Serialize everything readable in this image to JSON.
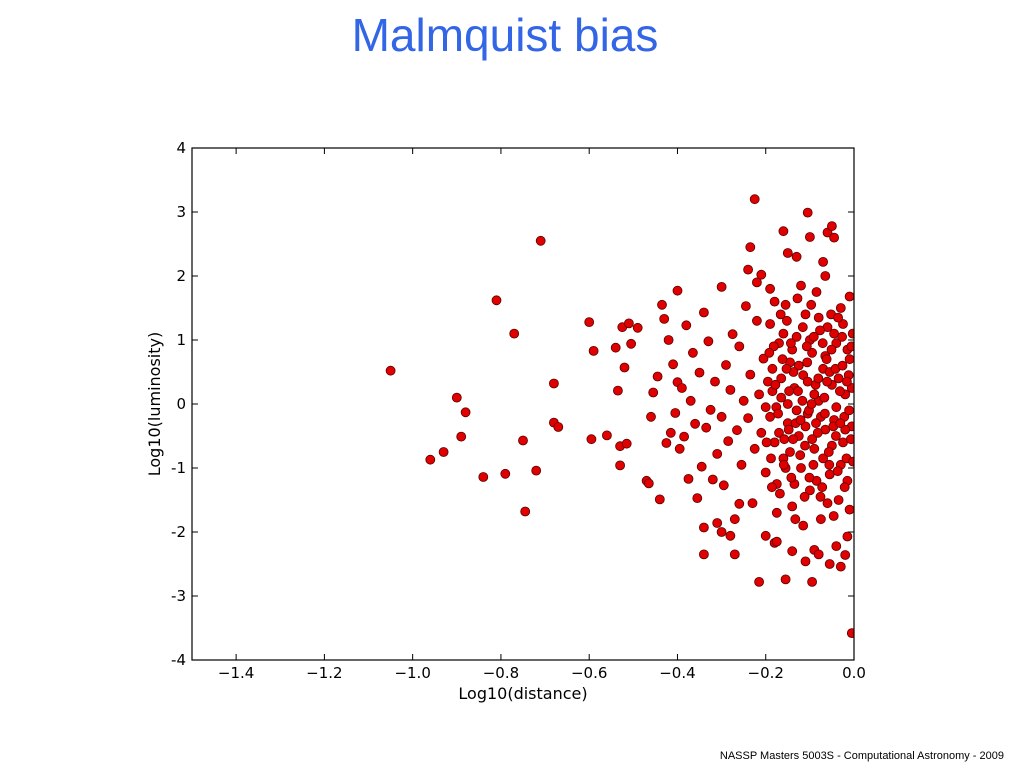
{
  "slide": {
    "title": "Malmquist bias",
    "footer": "NASSP Masters 5003S - Computational Astronomy - 2009"
  },
  "colors": {
    "title": "#3366e6",
    "point_fill": "#e00000",
    "point_edge": "#5a0000"
  },
  "chart_data": {
    "type": "scatter",
    "title": "",
    "xlabel": "Log10(distance)",
    "ylabel": "Log10(luminosity)",
    "xlim": [
      -1.5,
      0.0
    ],
    "ylim": [
      -4,
      4
    ],
    "xticks": [
      -1.4,
      -1.2,
      -1.0,
      -0.8,
      -0.6,
      -0.4,
      -0.2,
      0.0
    ],
    "xtick_labels": [
      "−1.4",
      "−1.2",
      "−1.0",
      "−0.8",
      "−0.6",
      "−0.4",
      "−0.2",
      "0.0"
    ],
    "yticks": [
      4,
      3,
      2,
      1,
      0,
      -1,
      -2,
      -3,
      -4
    ],
    "ytick_labels": [
      "4",
      "3",
      "2",
      "1",
      "0",
      "-1",
      "-2",
      "-3",
      "-4"
    ],
    "grid": false,
    "legend": "none",
    "series": [
      {
        "marker": "circle",
        "points": [
          [
            -1.05,
            0.52
          ],
          [
            -0.96,
            -0.87
          ],
          [
            -0.93,
            -0.75
          ],
          [
            -0.9,
            0.1
          ],
          [
            -0.89,
            -0.51
          ],
          [
            -0.88,
            -0.13
          ],
          [
            -0.84,
            -1.14
          ],
          [
            -0.81,
            1.62
          ],
          [
            -0.79,
            -1.09
          ],
          [
            -0.77,
            1.1
          ],
          [
            -0.75,
            -0.57
          ],
          [
            -0.745,
            -1.68
          ],
          [
            -0.72,
            -1.04
          ],
          [
            -0.71,
            2.55
          ],
          [
            -0.68,
            0.32
          ],
          [
            -0.68,
            -0.29
          ],
          [
            -0.67,
            -0.36
          ],
          [
            -0.6,
            1.28
          ],
          [
            -0.595,
            -0.55
          ],
          [
            -0.59,
            0.83
          ],
          [
            -0.56,
            -0.49
          ],
          [
            -0.54,
            0.88
          ],
          [
            -0.535,
            0.21
          ],
          [
            -0.53,
            -0.66
          ],
          [
            -0.53,
            -0.96
          ],
          [
            -0.525,
            1.2
          ],
          [
            -0.52,
            0.57
          ],
          [
            -0.515,
            -0.62
          ],
          [
            -0.51,
            1.26
          ],
          [
            -0.505,
            0.94
          ],
          [
            -0.49,
            1.19
          ],
          [
            -0.47,
            -1.2
          ],
          [
            -0.465,
            -1.24
          ],
          [
            -0.46,
            -0.2
          ],
          [
            -0.455,
            0.18
          ],
          [
            -0.445,
            0.43
          ],
          [
            -0.44,
            -1.49
          ],
          [
            -0.435,
            1.55
          ],
          [
            -0.43,
            1.33
          ],
          [
            -0.425,
            -0.61
          ],
          [
            -0.42,
            1.0
          ],
          [
            -0.415,
            -0.45
          ],
          [
            -0.41,
            0.62
          ],
          [
            -0.405,
            -0.14
          ],
          [
            -0.4,
            1.77
          ],
          [
            -0.4,
            0.34
          ],
          [
            -0.395,
            -0.7
          ],
          [
            -0.39,
            0.25
          ],
          [
            -0.385,
            -0.51
          ],
          [
            -0.38,
            1.23
          ],
          [
            -0.375,
            -1.17
          ],
          [
            -0.37,
            0.05
          ],
          [
            -0.365,
            0.8
          ],
          [
            -0.36,
            -0.31
          ],
          [
            -0.355,
            -1.47
          ],
          [
            -0.35,
            0.49
          ],
          [
            -0.345,
            -0.98
          ],
          [
            -0.34,
            1.43
          ],
          [
            -0.335,
            -0.37
          ],
          [
            -0.33,
            0.98
          ],
          [
            -0.325,
            -0.09
          ],
          [
            -0.32,
            -1.18
          ],
          [
            -0.315,
            0.35
          ],
          [
            -0.31,
            -0.78
          ],
          [
            -0.3,
            1.83
          ],
          [
            -0.3,
            -0.2
          ],
          [
            -0.295,
            -1.27
          ],
          [
            -0.29,
            0.61
          ],
          [
            -0.285,
            -0.58
          ],
          [
            -0.28,
            0.22
          ],
          [
            -0.275,
            1.09
          ],
          [
            -0.27,
            -1.8
          ],
          [
            -0.265,
            -0.41
          ],
          [
            -0.26,
            0.9
          ],
          [
            -0.255,
            -0.95
          ],
          [
            -0.25,
            0.05
          ],
          [
            -0.245,
            1.53
          ],
          [
            -0.24,
            -0.22
          ],
          [
            -0.235,
            0.46
          ],
          [
            -0.23,
            -1.55
          ],
          [
            -0.225,
            -0.7
          ],
          [
            -0.22,
            1.3
          ],
          [
            -0.215,
            0.15
          ],
          [
            -0.21,
            -0.45
          ],
          [
            -0.205,
            0.71
          ],
          [
            -0.2,
            -1.07
          ],
          [
            -0.2,
            -0.05
          ],
          [
            -0.34,
            -1.93
          ],
          [
            -0.34,
            -2.35
          ],
          [
            -0.31,
            -1.86
          ],
          [
            -0.3,
            -2.0
          ],
          [
            -0.28,
            -2.06
          ],
          [
            -0.27,
            -2.35
          ],
          [
            -0.26,
            -1.56
          ],
          [
            -0.24,
            2.1
          ],
          [
            -0.235,
            2.45
          ],
          [
            -0.225,
            3.2
          ],
          [
            -0.22,
            1.9
          ],
          [
            -0.215,
            -2.78
          ],
          [
            -0.21,
            2.02
          ],
          [
            -0.2,
            -2.06
          ],
          [
            -0.19,
            1.8
          ],
          [
            -0.18,
            -2.17
          ],
          [
            -0.175,
            -2.15
          ],
          [
            -0.16,
            2.7
          ],
          [
            -0.155,
            -2.74
          ],
          [
            -0.15,
            2.36
          ],
          [
            -0.14,
            -2.3
          ],
          [
            -0.13,
            2.3
          ],
          [
            -0.11,
            -2.46
          ],
          [
            -0.105,
            2.99
          ],
          [
            -0.1,
            2.61
          ],
          [
            -0.095,
            -2.78
          ],
          [
            -0.09,
            -2.28
          ],
          [
            -0.08,
            -2.35
          ],
          [
            -0.07,
            2.22
          ],
          [
            -0.065,
            2.0
          ],
          [
            -0.06,
            2.68
          ],
          [
            -0.055,
            -2.5
          ],
          [
            -0.05,
            2.78
          ],
          [
            -0.045,
            2.6
          ],
          [
            -0.04,
            -2.22
          ],
          [
            -0.03,
            -2.54
          ],
          [
            -0.02,
            -2.36
          ],
          [
            -0.015,
            -2.07
          ],
          [
            -0.01,
            1.68
          ],
          [
            -0.005,
            -3.58
          ],
          [
            -0.19,
            1.25
          ],
          [
            -0.185,
            0.55
          ],
          [
            -0.18,
            -0.6
          ],
          [
            -0.175,
            -1.25
          ],
          [
            -0.17,
            0.95
          ],
          [
            -0.165,
            0.1
          ],
          [
            -0.16,
            -0.85
          ],
          [
            -0.155,
            1.55
          ],
          [
            -0.15,
            -0.3
          ],
          [
            -0.145,
            0.65
          ],
          [
            -0.14,
            -1.6
          ],
          [
            -0.135,
            0.25
          ],
          [
            -0.13,
            1.05
          ],
          [
            -0.125,
            -0.5
          ],
          [
            -0.12,
            -1.0
          ],
          [
            -0.115,
            0.45
          ],
          [
            -0.11,
            1.4
          ],
          [
            -0.105,
            -0.15
          ],
          [
            -0.1,
            -1.35
          ],
          [
            -0.095,
            0.8
          ],
          [
            -0.09,
            -0.7
          ],
          [
            -0.085,
            1.75
          ],
          [
            -0.08,
            0.05
          ],
          [
            -0.075,
            -1.8
          ],
          [
            -0.07,
            0.55
          ],
          [
            -0.065,
            -0.4
          ],
          [
            -0.06,
            1.2
          ],
          [
            -0.055,
            -1.1
          ],
          [
            -0.05,
            0.3
          ],
          [
            -0.045,
            -0.25
          ],
          [
            -0.04,
            0.95
          ],
          [
            -0.035,
            -1.5
          ],
          [
            -0.03,
            1.5
          ],
          [
            -0.025,
            -0.6
          ],
          [
            -0.02,
            0.15
          ],
          [
            -0.015,
            -1.2
          ],
          [
            -0.01,
            0.7
          ],
          [
            -0.005,
            -0.35
          ],
          [
            -0.19,
            -0.2
          ],
          [
            -0.185,
            0.2
          ],
          [
            -0.18,
            1.6
          ],
          [
            -0.175,
            -1.7
          ],
          [
            -0.17,
            -0.45
          ],
          [
            -0.165,
            0.4
          ],
          [
            -0.16,
            1.1
          ],
          [
            -0.155,
            -1.0
          ],
          [
            -0.15,
            0.0
          ],
          [
            -0.145,
            -0.75
          ],
          [
            -0.14,
            0.85
          ],
          [
            -0.135,
            -1.25
          ],
          [
            -0.13,
            -0.1
          ],
          [
            -0.125,
            0.6
          ],
          [
            -0.12,
            1.85
          ],
          [
            -0.115,
            -1.9
          ],
          [
            -0.11,
            -0.35
          ],
          [
            -0.105,
            0.35
          ],
          [
            -0.1,
            1.0
          ],
          [
            -0.095,
            -0.55
          ],
          [
            -0.09,
            0.15
          ],
          [
            -0.085,
            -1.2
          ],
          [
            -0.08,
            1.35
          ],
          [
            -0.075,
            -0.2
          ],
          [
            -0.07,
            -0.85
          ],
          [
            -0.065,
            0.75
          ],
          [
            -0.06,
            -1.55
          ],
          [
            -0.055,
            0.5
          ],
          [
            -0.05,
            -0.65
          ],
          [
            -0.045,
            1.1
          ],
          [
            -0.04,
            -0.05
          ],
          [
            -0.035,
            0.4
          ],
          [
            -0.03,
            -0.95
          ],
          [
            -0.025,
            1.25
          ],
          [
            -0.02,
            -0.4
          ],
          [
            -0.015,
            0.85
          ],
          [
            -0.01,
            -1.65
          ],
          [
            -0.005,
            0.25
          ],
          [
            -0.195,
            0.35
          ],
          [
            -0.188,
            -0.85
          ],
          [
            -0.182,
            0.9
          ],
          [
            -0.176,
            -0.05
          ],
          [
            -0.168,
            -1.4
          ],
          [
            -0.162,
            0.7
          ],
          [
            -0.158,
            -0.55
          ],
          [
            -0.152,
            1.3
          ],
          [
            -0.147,
            0.2
          ],
          [
            -0.142,
            -1.15
          ],
          [
            -0.137,
            0.5
          ],
          [
            -0.132,
            -0.3
          ],
          [
            -0.128,
            1.65
          ],
          [
            -0.122,
            -0.8
          ],
          [
            -0.117,
            0.05
          ],
          [
            -0.112,
            -1.45
          ],
          [
            -0.107,
            0.9
          ],
          [
            -0.102,
            -0.1
          ],
          [
            -0.097,
            1.55
          ],
          [
            -0.092,
            -0.95
          ],
          [
            -0.087,
            0.3
          ],
          [
            -0.082,
            -0.45
          ],
          [
            -0.077,
            1.15
          ],
          [
            -0.072,
            -1.3
          ],
          [
            -0.067,
            0.1
          ],
          [
            -0.062,
            0.7
          ],
          [
            -0.057,
            -0.75
          ],
          [
            -0.052,
            1.4
          ],
          [
            -0.047,
            -0.35
          ],
          [
            -0.042,
            0.55
          ],
          [
            -0.037,
            -1.05
          ],
          [
            -0.032,
            0.2
          ],
          [
            -0.027,
            1.05
          ],
          [
            -0.022,
            -0.2
          ],
          [
            -0.017,
            -0.85
          ],
          [
            -0.012,
            0.45
          ],
          [
            -0.007,
            -0.55
          ],
          [
            -0.003,
            1.1
          ],
          [
            -0.198,
            -0.6
          ],
          [
            -0.192,
            0.8
          ],
          [
            -0.186,
            -1.3
          ],
          [
            -0.178,
            0.3
          ],
          [
            -0.172,
            -0.15
          ],
          [
            -0.166,
            1.4
          ],
          [
            -0.159,
            -0.95
          ],
          [
            -0.153,
            0.55
          ],
          [
            -0.148,
            -0.4
          ],
          [
            -0.143,
            0.95
          ],
          [
            -0.138,
            -0.55
          ],
          [
            -0.133,
            -1.8
          ],
          [
            -0.127,
            0.2
          ],
          [
            -0.121,
            -0.25
          ],
          [
            -0.116,
            1.2
          ],
          [
            -0.111,
            -0.65
          ],
          [
            -0.106,
            0.65
          ],
          [
            -0.101,
            -1.15
          ],
          [
            -0.096,
            0.0
          ],
          [
            -0.091,
            1.05
          ],
          [
            -0.086,
            -0.3
          ],
          [
            -0.081,
            0.4
          ],
          [
            -0.076,
            -1.45
          ],
          [
            -0.071,
            0.95
          ],
          [
            -0.066,
            -0.15
          ],
          [
            -0.061,
            0.35
          ],
          [
            -0.056,
            -0.95
          ],
          [
            -0.051,
            0.85
          ],
          [
            -0.046,
            -1.75
          ],
          [
            -0.041,
            -0.5
          ],
          [
            -0.036,
            1.35
          ],
          [
            -0.031,
            -0.3
          ],
          [
            -0.026,
            0.6
          ],
          [
            -0.021,
            -1.3
          ],
          [
            -0.016,
            0.35
          ],
          [
            -0.011,
            -0.1
          ],
          [
            -0.006,
            0.9
          ],
          [
            -0.002,
            -0.9
          ]
        ]
      }
    ]
  }
}
